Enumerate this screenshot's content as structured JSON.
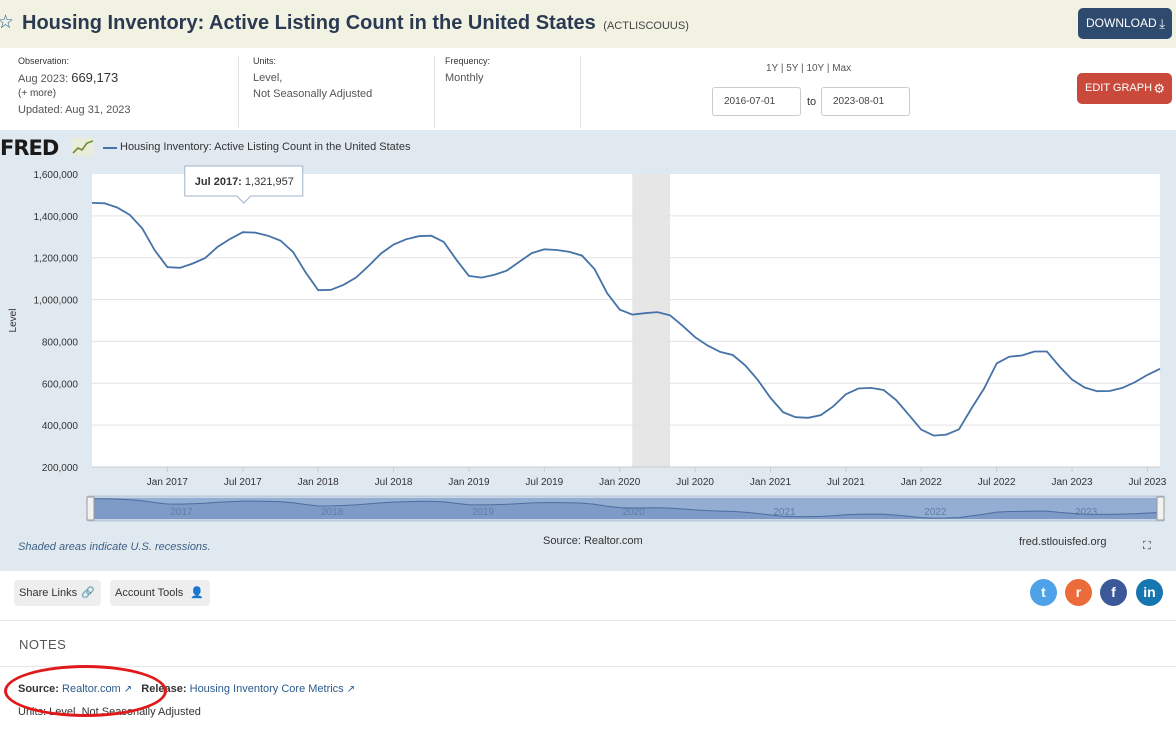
{
  "header": {
    "title": "Housing Inventory: Active Listing Count in the United States",
    "series_code": "(ACTLISCOUUS)",
    "download_label": "DOWNLOAD"
  },
  "meta": {
    "observation_label": "Observation:",
    "observation_date": "Aug 2023:",
    "observation_value": "669,173",
    "more_label": "(+ more)",
    "updated": "Updated: Aug 31, 2023",
    "units_label": "Units:",
    "units_line1": "Level,",
    "units_line2": "Not Seasonally Adjusted",
    "frequency_label": "Frequency:",
    "frequency_value": "Monthly"
  },
  "controls": {
    "ranges": [
      "1Y",
      "5Y",
      "10Y",
      "Max"
    ],
    "start_date": "2016-07-01",
    "end_date": "2023-08-01",
    "to_label": "to",
    "edit_label": "EDIT GRAPH"
  },
  "graph": {
    "logo": "FRED",
    "legend": "Housing Inventory: Active Listing Count in the United States",
    "tooltip_date": "Jul 2017:",
    "tooltip_value": "1,321,957",
    "shaded_note": "Shaded areas indicate U.S. recessions.",
    "source": "Source: Realtor.com",
    "site": "fred.stlouisfed.org"
  },
  "chart_data": {
    "type": "line",
    "ylabel": "Level",
    "ylim": [
      200000,
      1600000
    ],
    "yticks": [
      "1,600,000",
      "1,400,000",
      "1,200,000",
      "1,000,000",
      "800,000",
      "600,000",
      "400,000",
      "200,000"
    ],
    "xticks": [
      "Jan 2017",
      "Jul 2017",
      "Jan 2018",
      "Jul 2018",
      "Jan 2019",
      "Jul 2019",
      "Jan 2020",
      "Jul 2020",
      "Jan 2021",
      "Jul 2021",
      "Jan 2022",
      "Jul 2022",
      "Jan 2023",
      "Jul 2023"
    ],
    "navigator_labels": [
      "2017",
      "2018",
      "2019",
      "2020",
      "2021",
      "2022",
      "2023"
    ],
    "recession": [
      "2020-02",
      "2020-04"
    ],
    "series": [
      {
        "name": "Housing Inventory: Active Listing Count in the United States",
        "start": "2016-07",
        "values": [
          1462000,
          1460000,
          1440000,
          1405000,
          1340000,
          1235000,
          1155000,
          1152000,
          1172000,
          1198000,
          1252000,
          1290000,
          1321957,
          1320000,
          1305000,
          1282000,
          1228000,
          1130000,
          1045000,
          1046000,
          1070000,
          1105000,
          1160000,
          1220000,
          1263000,
          1288000,
          1303000,
          1305000,
          1275000,
          1190000,
          1113000,
          1105000,
          1118000,
          1138000,
          1180000,
          1222000,
          1240000,
          1237000,
          1228000,
          1210000,
          1145000,
          1030000,
          952000,
          928000,
          935000,
          940000,
          925000,
          875000,
          820000,
          780000,
          750000,
          735000,
          685000,
          615000,
          530000,
          462000,
          438000,
          435000,
          448000,
          490000,
          548000,
          575000,
          578000,
          568000,
          520000,
          450000,
          378000,
          350000,
          355000,
          380000,
          480000,
          575000,
          695000,
          727000,
          733000,
          752000,
          752000,
          680000,
          618000,
          580000,
          562000,
          563000,
          578000,
          605000,
          640000,
          669173
        ]
      }
    ]
  },
  "share": {
    "share_links": "Share Links",
    "account_tools": "Account Tools"
  },
  "notes": {
    "heading": "NOTES",
    "source_label": "Source:",
    "source_value": "Realtor.com",
    "release_label": "Release:",
    "release_value": "Housing Inventory Core Metrics",
    "units_text": "Units: Level, Not Seasonally Adjusted"
  },
  "colors": {
    "header_bg": "#f1f2e2",
    "panel_bg": "#e1e9f0",
    "line": "#4572a7",
    "download": "#2e4a6e",
    "edit": "#c9493a",
    "annotation": "#e0191b"
  }
}
